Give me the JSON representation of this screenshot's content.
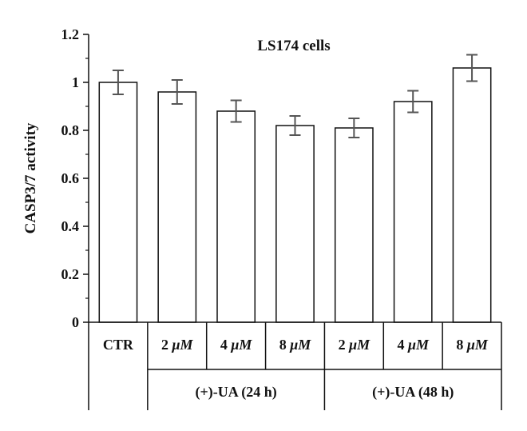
{
  "chart_data": {
    "type": "bar",
    "title": "LS174 cells",
    "ylabel": "CASP3/7 activity",
    "xlabel": "",
    "ylim": [
      0,
      1.2
    ],
    "yticks": [
      "0",
      "0.2",
      "0.4",
      "0.6",
      "0.8",
      "1",
      "1.2"
    ],
    "categories": [
      "CTR",
      "2 μM",
      "4 μM",
      "8 μM",
      "2 μM",
      "4 μM",
      "8 μM"
    ],
    "values": [
      1.0,
      0.96,
      0.88,
      0.82,
      0.81,
      0.92,
      1.06
    ],
    "errors": [
      0.05,
      0.05,
      0.045,
      0.04,
      0.04,
      0.045,
      0.055
    ],
    "groups": [
      {
        "label": "(+)-UA (24 h)",
        "from": 1,
        "to": 3
      },
      {
        "label": "(+)-UA (48 h)",
        "from": 4,
        "to": 6
      }
    ],
    "colors": {
      "bar_fill": "#ffffff",
      "bar_stroke": "#111111",
      "error_bar": "#555555"
    }
  }
}
